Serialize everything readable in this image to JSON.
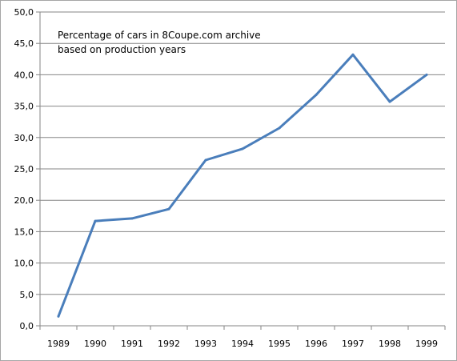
{
  "chart_data": {
    "type": "line",
    "title_lines": [
      "Percentage of cars in 8Coupe.com archive",
      "based on production years"
    ],
    "xlabel": "",
    "ylabel": "",
    "categories": [
      "1989",
      "1990",
      "1991",
      "1992",
      "1993",
      "1994",
      "1995",
      "1996",
      "1997",
      "1998",
      "1999"
    ],
    "series": [
      {
        "values": [
          1.5,
          16.7,
          17.1,
          18.6,
          26.4,
          28.2,
          31.5,
          36.8,
          43.2,
          35.7,
          40.0
        ]
      }
    ],
    "ylim": [
      0,
      50
    ],
    "y_ticks": [
      "0,0",
      "5,0",
      "10,0",
      "15,0",
      "20,0",
      "25,0",
      "30,0",
      "35,0",
      "40,0",
      "45,0",
      "50,0"
    ],
    "grid": "horizontal",
    "legend": "none",
    "colors": {
      "line": "#4a7ebb",
      "grid": "#868686",
      "axis": "#868686"
    }
  }
}
